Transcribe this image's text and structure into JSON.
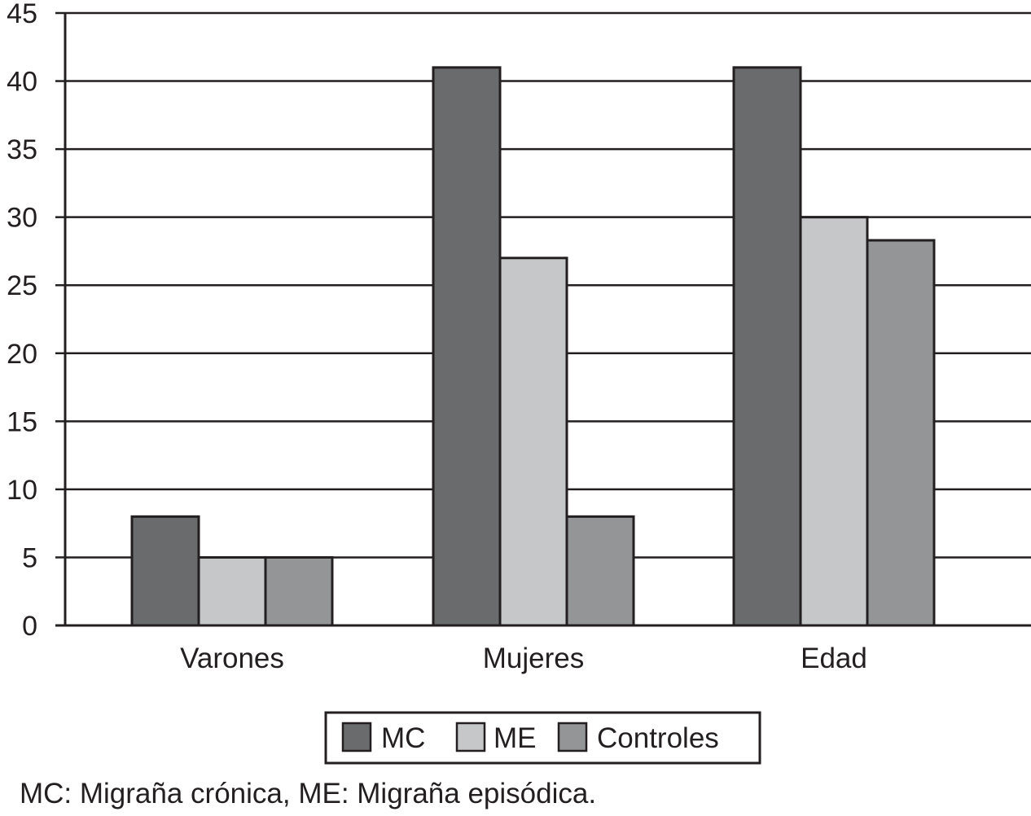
{
  "chart_data": {
    "type": "bar",
    "categories": [
      "Varones",
      "Mujeres",
      "Edad"
    ],
    "series": [
      {
        "name": "MC",
        "values": [
          8,
          41,
          41
        ],
        "color": "#6a6b6d"
      },
      {
        "name": "ME",
        "values": [
          5,
          27,
          30
        ],
        "color": "#c6c7c9"
      },
      {
        "name": "Controles",
        "values": [
          5,
          8,
          28.3
        ],
        "color": "#939597"
      }
    ],
    "ylim": [
      0,
      45
    ],
    "yticks": [
      0,
      5,
      10,
      15,
      20,
      25,
      30,
      35,
      40,
      45
    ],
    "grid": true,
    "legend_position": "bottom-center",
    "title": "",
    "xlabel": "",
    "ylabel": ""
  },
  "caption": "MC: Migraña crónica, ME: Migraña episódica."
}
